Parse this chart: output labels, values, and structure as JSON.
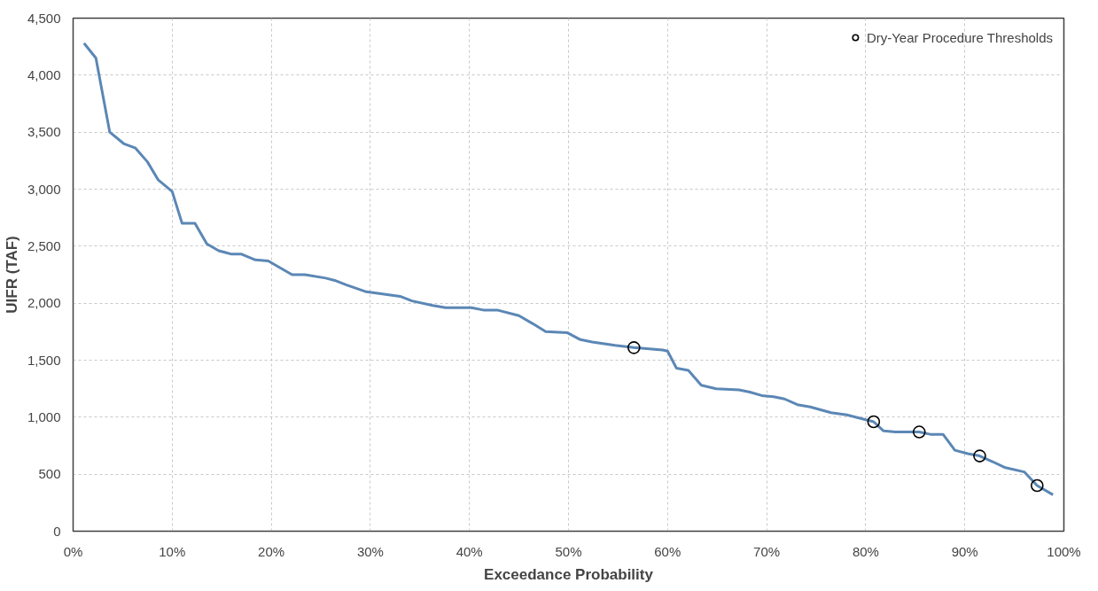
{
  "chart_data": {
    "type": "line",
    "xlabel": "Exceedance Probability",
    "ylabel": "UIFR (TAF)",
    "xlim": [
      0,
      100
    ],
    "ylim": [
      0,
      4500
    ],
    "xticks": [
      {
        "value": 0,
        "label": "0%"
      },
      {
        "value": 10,
        "label": "10%"
      },
      {
        "value": 20,
        "label": "20%"
      },
      {
        "value": 30,
        "label": "30%"
      },
      {
        "value": 40,
        "label": "40%"
      },
      {
        "value": 50,
        "label": "50%"
      },
      {
        "value": 60,
        "label": "60%"
      },
      {
        "value": 70,
        "label": "70%"
      },
      {
        "value": 80,
        "label": "80%"
      },
      {
        "value": 90,
        "label": "90%"
      },
      {
        "value": 100,
        "label": "100%"
      }
    ],
    "yticks": [
      {
        "value": 0,
        "label": "0"
      },
      {
        "value": 500,
        "label": "500"
      },
      {
        "value": 1000,
        "label": "1,000"
      },
      {
        "value": 1500,
        "label": "1,500"
      },
      {
        "value": 2000,
        "label": "2,000"
      },
      {
        "value": 2500,
        "label": "2,500"
      },
      {
        "value": 3000,
        "label": "3,000"
      },
      {
        "value": 3500,
        "label": "3,500"
      },
      {
        "value": 4000,
        "label": "4,000"
      },
      {
        "value": 4500,
        "label": "4,500"
      }
    ],
    "grid": true,
    "legend": "top right",
    "line_style": "solid",
    "series": [
      {
        "color": "#5b87b5",
        "marker": "none",
        "x": [
          1.1,
          2.3,
          3.7,
          5.1,
          6.3,
          7.5,
          8.6,
          10.0,
          11.0,
          12.3,
          13.5,
          14.7,
          16.0,
          17.0,
          18.4,
          19.7,
          20.7,
          22.1,
          23.4,
          25.5,
          26.4,
          27.6,
          29.6,
          33.0,
          34.2,
          36.3,
          37.6,
          40.2,
          41.4,
          42.8,
          45.0,
          46.4,
          47.7,
          49.9,
          51.2,
          52.4,
          54.7,
          56.6,
          59.5,
          60.0,
          60.9,
          62.1,
          63.4,
          64.9,
          67.2,
          68.3,
          69.5,
          70.7,
          71.8,
          73.1,
          74.4,
          76.5,
          78.1,
          80.8,
          81.8,
          83.0,
          85.4,
          86.5,
          87.8,
          89.0,
          90.3,
          91.5,
          92.8,
          94.0,
          96.0,
          97.3,
          98.9
        ],
        "values": [
          4280,
          4150,
          3500,
          3400,
          3360,
          3240,
          3080,
          2980,
          2700,
          2700,
          2520,
          2460,
          2430,
          2430,
          2380,
          2370,
          2320,
          2250,
          2250,
          2220,
          2200,
          2160,
          2100,
          2060,
          2020,
          1980,
          1960,
          1960,
          1940,
          1940,
          1890,
          1820,
          1750,
          1740,
          1680,
          1660,
          1630,
          1610,
          1590,
          1580,
          1430,
          1410,
          1280,
          1250,
          1240,
          1220,
          1190,
          1180,
          1160,
          1110,
          1090,
          1040,
          1020,
          960,
          880,
          870,
          870,
          850,
          850,
          710,
          680,
          660,
          610,
          560,
          520,
          400,
          320
        ]
      },
      {
        "type": "scatter",
        "name": "Dry-Year Procedure Thresholds",
        "color": "#000000",
        "marker": "circle",
        "x": [
          56.6,
          80.8,
          85.4,
          91.5,
          97.3
        ],
        "values": [
          1610,
          960,
          870,
          660,
          400
        ]
      }
    ]
  }
}
